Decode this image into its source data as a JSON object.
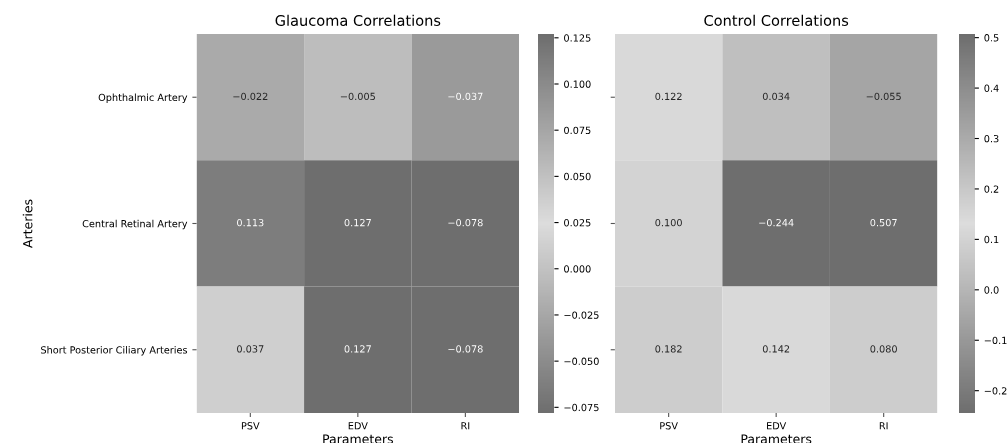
{
  "chart_data": [
    {
      "type": "heatmap",
      "title": "Glaucoma Correlations",
      "xlabel": "Parameters",
      "ylabel": "Arteries",
      "categories": [
        "PSV",
        "EDV",
        "RI"
      ],
      "y_categories": [
        "Ophthalmic Artery",
        "Central Retinal Artery",
        "Short Posterior Ciliary Arteries"
      ],
      "cells": [
        [
          -0.022,
          -0.005,
          -0.037
        ],
        [
          0.113,
          0.127,
          -0.078
        ],
        [
          0.037,
          0.127,
          -0.078
        ]
      ],
      "cell_labels": [
        [
          "−0.022",
          "−0.005",
          "−0.037"
        ],
        [
          "0.113",
          "0.127",
          "−0.078"
        ],
        [
          "0.037",
          "0.127",
          "−0.078"
        ]
      ],
      "clim": [
        -0.078,
        0.127
      ],
      "cticks": [
        {
          "value": -0.075,
          "label": "−0.075"
        },
        {
          "value": -0.05,
          "label": "−0.050"
        },
        {
          "value": -0.025,
          "label": "−0.025"
        },
        {
          "value": 0,
          "label": "0.000"
        },
        {
          "value": 0.025,
          "label": "0.025"
        },
        {
          "value": 0.05,
          "label": "0.050"
        },
        {
          "value": 0.075,
          "label": "0.075"
        },
        {
          "value": 0.1,
          "label": "0.100"
        },
        {
          "value": 0.125,
          "label": "0.125"
        }
      ]
    },
    {
      "type": "heatmap",
      "title": "Control Correlations",
      "xlabel": "Parameters",
      "tick_labels": "x",
      "categories": [
        "PSV",
        "EDV",
        "RI"
      ],
      "y_categories": [
        null,
        null,
        null
      ],
      "cells": [
        [
          0.122,
          0.034,
          -0.055
        ],
        [
          0.1,
          -0.244,
          0.507
        ],
        [
          0.182,
          0.142,
          0.08
        ]
      ],
      "cell_labels": [
        [
          "0.122",
          "0.034",
          "−0.055"
        ],
        [
          "0.100",
          "−0.244",
          "0.507"
        ],
        [
          "0.182",
          "0.142",
          "0.080"
        ]
      ],
      "clim": [
        -0.244,
        0.507
      ],
      "cticks": [
        {
          "value": -0.2,
          "label": "−0.2"
        },
        {
          "value": -0.1,
          "label": "−0.1"
        },
        {
          "value": 0,
          "label": "0.0"
        },
        {
          "value": 0.1,
          "label": "0.1"
        },
        {
          "value": 0.2,
          "label": "0.2"
        },
        {
          "value": 0.3,
          "label": "0.3"
        },
        {
          "value": 0.4,
          "label": "0.4"
        },
        {
          "value": 0.5,
          "label": "0.5"
        }
      ]
    }
  ]
}
